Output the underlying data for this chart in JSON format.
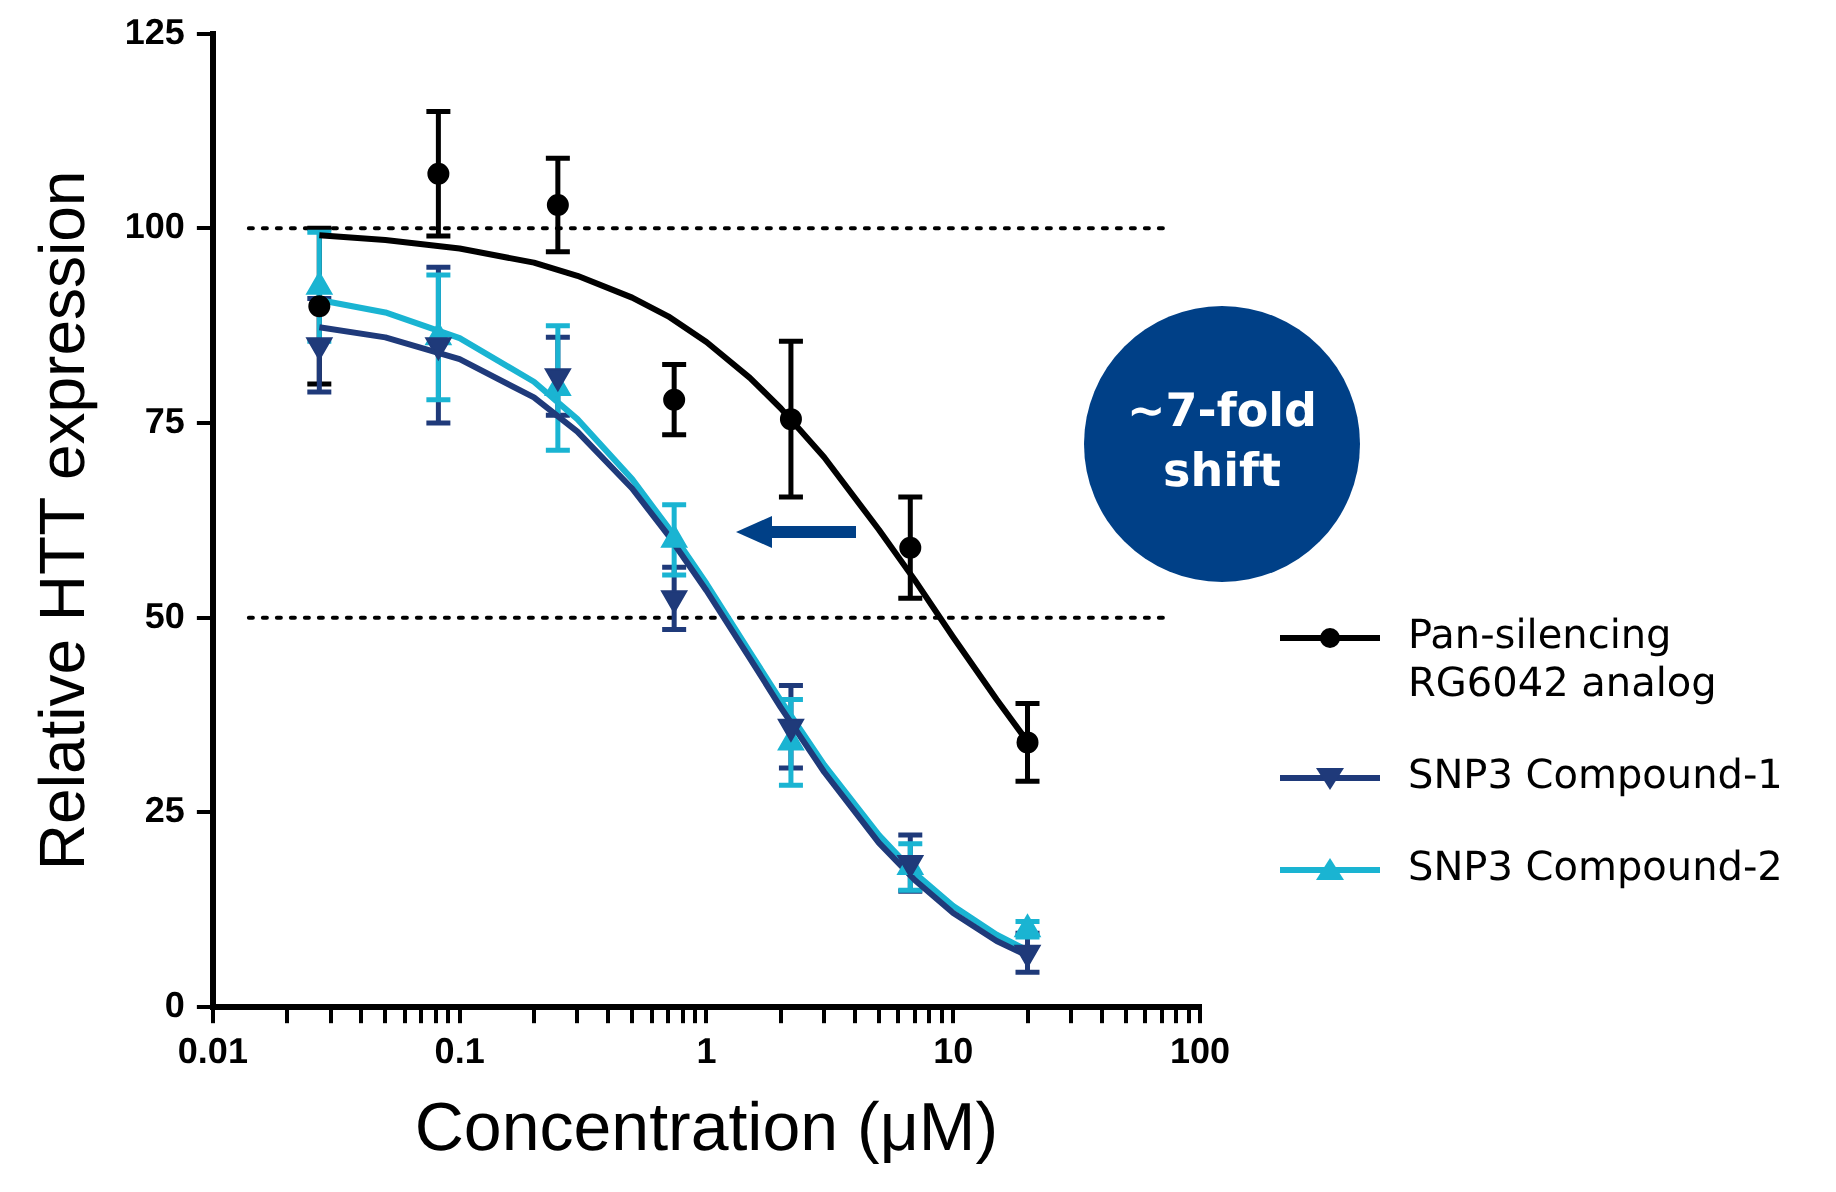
{
  "chart_data": {
    "type": "scatter",
    "xlabel": "Concentration (μM)",
    "ylabel": "Relative HTT expression",
    "log": "x",
    "xlim": [
      0.01,
      100
    ],
    "ylim": [
      0,
      125
    ],
    "xticks": [
      {
        "value": 0.01,
        "label": "0.01"
      },
      {
        "value": 0.02,
        "label": null
      },
      {
        "value": 0.03,
        "label": null
      },
      {
        "value": 0.04,
        "label": null
      },
      {
        "value": 0.05,
        "label": null
      },
      {
        "value": 0.06,
        "label": null
      },
      {
        "value": 0.07,
        "label": null
      },
      {
        "value": 0.08,
        "label": null
      },
      {
        "value": 0.09,
        "label": null
      },
      {
        "value": 0.1,
        "label": "0.1"
      },
      {
        "value": 0.2,
        "label": null
      },
      {
        "value": 0.3,
        "label": null
      },
      {
        "value": 0.4,
        "label": null
      },
      {
        "value": 0.5,
        "label": null
      },
      {
        "value": 0.6,
        "label": null
      },
      {
        "value": 0.7,
        "label": null
      },
      {
        "value": 0.8,
        "label": null
      },
      {
        "value": 0.9,
        "label": null
      },
      {
        "value": 1,
        "label": "1"
      },
      {
        "value": 2,
        "label": null
      },
      {
        "value": 3,
        "label": null
      },
      {
        "value": 4,
        "label": null
      },
      {
        "value": 5,
        "label": null
      },
      {
        "value": 6,
        "label": null
      },
      {
        "value": 7,
        "label": null
      },
      {
        "value": 8,
        "label": null
      },
      {
        "value": 9,
        "label": null
      },
      {
        "value": 10,
        "label": "10"
      },
      {
        "value": 20,
        "label": null
      },
      {
        "value": 30,
        "label": null
      },
      {
        "value": 40,
        "label": null
      },
      {
        "value": 50,
        "label": null
      },
      {
        "value": 60,
        "label": null
      },
      {
        "value": 70,
        "label": null
      },
      {
        "value": 80,
        "label": null
      },
      {
        "value": 90,
        "label": null
      },
      {
        "value": 100,
        "label": "100"
      }
    ],
    "yticks": [
      0,
      25,
      50,
      75,
      100,
      125
    ],
    "grid": false,
    "legend": "right",
    "ref_lines": [
      {
        "axis": "y",
        "value": 100,
        "line_style": "dotted",
        "color": "#000000"
      },
      {
        "axis": "y",
        "value": 50,
        "line_style": "dotted",
        "color": "#000000"
      }
    ],
    "annotations": [
      "~7-fold shift"
    ],
    "series": [
      {
        "name": "Pan-silencing RG6042 analog",
        "type": "scatter",
        "marker": "circle",
        "color": "#000000",
        "x": [
          0.027,
          0.082,
          0.25,
          0.74,
          2.2,
          6.7,
          20
        ],
        "values": [
          90,
          107,
          103,
          78,
          75.5,
          59,
          34
        ],
        "errors": [
          10,
          8,
          6,
          4.5,
          10,
          6.5,
          5
        ]
      },
      {
        "name": "SNP3 Compound-1",
        "type": "scatter",
        "marker": "triangle-down",
        "color": "#1f3a7a",
        "x": [
          0.027,
          0.082,
          0.25,
          0.74,
          2.2,
          6.7,
          20
        ],
        "values": [
          85,
          85,
          81,
          52.5,
          36,
          18.5,
          7
        ],
        "errors": [
          6,
          10,
          5,
          4,
          5.3,
          3.6,
          2.5
        ]
      },
      {
        "name": "SNP3 Compound-2",
        "type": "scatter",
        "marker": "triangle",
        "color": "#1ab4d2",
        "x": [
          0.027,
          0.082,
          0.25,
          0.74,
          2.2,
          6.7,
          20
        ],
        "values": [
          92.5,
          86,
          79.5,
          60,
          34,
          18,
          10
        ],
        "errors": [
          7,
          8,
          8,
          4.5,
          5.5,
          3,
          1
        ]
      },
      {
        "type": "line",
        "marker": "none",
        "color": "#000000",
        "x": [
          0.027,
          0.05,
          0.1,
          0.2,
          0.3,
          0.5,
          0.7,
          1,
          1.5,
          2,
          3,
          5,
          7,
          10,
          15,
          20
        ],
        "values": [
          99.1,
          98.5,
          97.4,
          95.6,
          93.9,
          91.1,
          88.7,
          85.4,
          80.8,
          76.9,
          70.6,
          61.3,
          54.8,
          47.5,
          39.5,
          34.1
        ]
      },
      {
        "type": "line",
        "marker": "none",
        "color": "#1f3a7a",
        "x": [
          0.027,
          0.05,
          0.1,
          0.2,
          0.3,
          0.5,
          0.7,
          1,
          1.5,
          2,
          3,
          5,
          7,
          10,
          15,
          20
        ],
        "values": [
          87.3,
          86,
          83.2,
          78.3,
          73.9,
          66.6,
          60.6,
          53.5,
          44.8,
          38.5,
          30.2,
          21.1,
          16.3,
          12.1,
          8.5,
          6.6
        ]
      },
      {
        "type": "line",
        "marker": "none",
        "color": "#1ab4d2",
        "x": [
          0.027,
          0.05,
          0.1,
          0.2,
          0.3,
          0.5,
          0.7,
          1,
          1.5,
          2,
          3,
          5,
          7,
          10,
          15,
          20
        ],
        "values": [
          90.8,
          89.2,
          85.9,
          80.3,
          75.5,
          67.8,
          61.6,
          54.4,
          45.6,
          39.4,
          31.1,
          22.1,
          17.2,
          13,
          9.3,
          7.3
        ]
      }
    ]
  }
}
